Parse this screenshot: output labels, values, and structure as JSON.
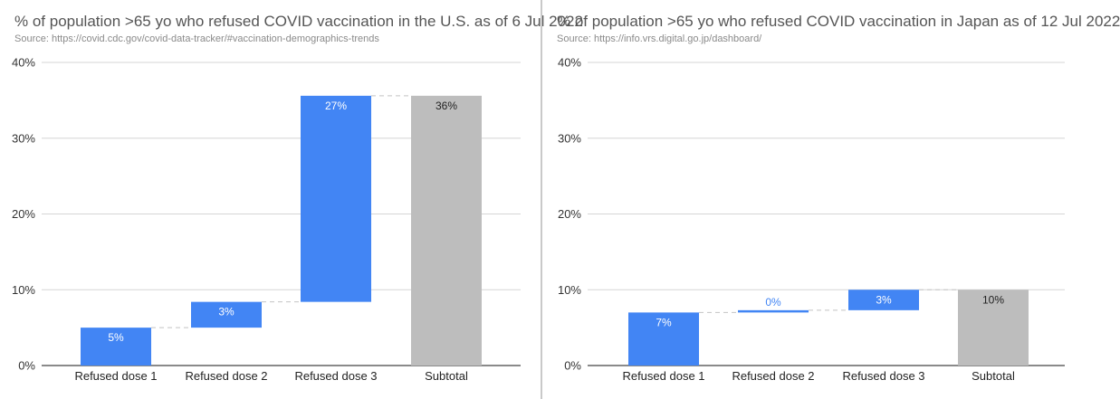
{
  "colors": {
    "increase": "#4285f4",
    "total": "#bdbdbd",
    "grid": "#d6d6d6",
    "connector": "#c4c4c4",
    "label_on_blue": "#ffffff",
    "label_on_gray": "#222222",
    "label_outside": "#4285f4"
  },
  "chart_data": [
    {
      "type": "bar",
      "subtype": "waterfall",
      "title": "% of population >65 yo who refused COVID vaccination in the U.S. as of 6 Jul 2022",
      "source": "Source: https://covid.cdc.gov/covid-data-tracker/#vaccination-demographics-trends",
      "categories": [
        "Refused dose 1",
        "Refused dose 2",
        "Refused dose 3",
        "Subtotal"
      ],
      "values": [
        5,
        3.4,
        27.2,
        35.6
      ],
      "kinds": [
        "increase",
        "increase",
        "increase",
        "total"
      ],
      "data_labels": [
        "5%",
        "3%",
        "27%",
        "36%"
      ],
      "ylim": [
        0,
        40
      ],
      "yticks": [
        "0%",
        "10%",
        "20%",
        "30%",
        "40%"
      ],
      "grid": true,
      "xlabel": "",
      "ylabel": ""
    },
    {
      "type": "bar",
      "subtype": "waterfall",
      "title": "% of population >65 yo who refused COVID vaccination in Japan as of 12 Jul 2022",
      "source": "Source: https://info.vrs.digital.go.jp/dashboard/",
      "categories": [
        "Refused dose 1",
        "Refused dose 2",
        "Refused dose 3",
        "Subtotal"
      ],
      "values": [
        7,
        0.3,
        2.7,
        10
      ],
      "kinds": [
        "increase",
        "increase",
        "increase",
        "total"
      ],
      "data_labels": [
        "7%",
        "0%",
        "3%",
        "10%"
      ],
      "ylim": [
        0,
        40
      ],
      "yticks": [
        "0%",
        "10%",
        "20%",
        "30%",
        "40%"
      ],
      "grid": true,
      "xlabel": "",
      "ylabel": ""
    }
  ]
}
